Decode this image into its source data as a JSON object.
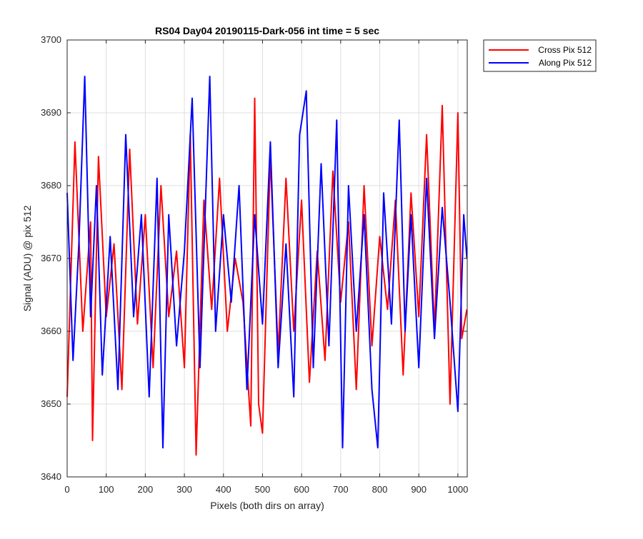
{
  "chart_data": {
    "type": "line",
    "title": "RS04 Day04 20190115-Dark-056 int time = 5 sec",
    "xlabel": "Pixels (both dirs on array)",
    "ylabel": "Signal (ADU) @ pix 512",
    "xlim": [
      0,
      1024
    ],
    "ylim": [
      3640,
      3700
    ],
    "xticks": [
      0,
      100,
      200,
      300,
      400,
      500,
      600,
      700,
      800,
      900,
      1000
    ],
    "yticks": [
      3640,
      3650,
      3660,
      3670,
      3680,
      3690,
      3700
    ],
    "grid": true,
    "legend_position": "outside-top-right",
    "series": [
      {
        "name": "Cross Pix 512",
        "color": "#ff0000",
        "x": [
          0,
          20,
          40,
          60,
          65,
          80,
          100,
          120,
          140,
          160,
          180,
          200,
          220,
          240,
          260,
          280,
          300,
          315,
          330,
          350,
          370,
          390,
          410,
          430,
          450,
          470,
          480,
          490,
          500,
          520,
          540,
          560,
          580,
          600,
          620,
          640,
          660,
          680,
          700,
          720,
          740,
          760,
          780,
          800,
          820,
          840,
          860,
          880,
          900,
          920,
          940,
          960,
          980,
          1000,
          1010,
          1023
        ],
        "y": [
          3651,
          3686,
          3660,
          3675,
          3645,
          3684,
          3662,
          3672,
          3652,
          3685,
          3661,
          3676,
          3655,
          3680,
          3662,
          3671,
          3655,
          3687,
          3643,
          3678,
          3663,
          3681,
          3660,
          3670,
          3664,
          3647,
          3692,
          3650,
          3646,
          3684,
          3657,
          3681,
          3660,
          3678,
          3653,
          3671,
          3656,
          3682,
          3664,
          3675,
          3652,
          3680,
          3658,
          3673,
          3663,
          3678,
          3654,
          3679,
          3662,
          3687,
          3660,
          3691,
          3650,
          3690,
          3659,
          3663
        ]
      },
      {
        "name": "Along Pix 512",
        "color": "#0000ff",
        "x": [
          0,
          15,
          30,
          45,
          60,
          75,
          90,
          110,
          130,
          150,
          170,
          190,
          210,
          230,
          245,
          260,
          280,
          300,
          320,
          340,
          365,
          380,
          400,
          420,
          440,
          460,
          480,
          500,
          520,
          540,
          560,
          580,
          595,
          612,
          630,
          650,
          670,
          690,
          705,
          720,
          740,
          760,
          780,
          795,
          810,
          830,
          850,
          865,
          880,
          900,
          920,
          940,
          960,
          980,
          1000,
          1015,
          1023
        ],
        "y": [
          3679,
          3656,
          3672,
          3695,
          3662,
          3680,
          3654,
          3673,
          3652,
          3687,
          3662,
          3676,
          3651,
          3681,
          3644,
          3676,
          3658,
          3671,
          3692,
          3655,
          3695,
          3660,
          3676,
          3664,
          3680,
          3652,
          3676,
          3661,
          3686,
          3655,
          3672,
          3651,
          3687,
          3693,
          3655,
          3683,
          3658,
          3689,
          3644,
          3680,
          3660,
          3676,
          3652,
          3644,
          3679,
          3661,
          3689,
          3660,
          3676,
          3655,
          3681,
          3659,
          3677,
          3664,
          3649,
          3676,
          3670
        ]
      }
    ]
  }
}
